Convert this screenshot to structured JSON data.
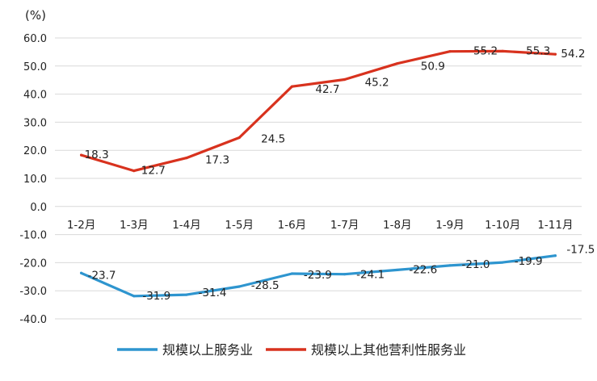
{
  "chart_data": {
    "type": "line",
    "unit_label": "(%)",
    "categories": [
      "1-2月",
      "1-3月",
      "1-4月",
      "1-5月",
      "1-6月",
      "1-7月",
      "1-8月",
      "1-9月",
      "1-10月",
      "1-11月"
    ],
    "ylim": [
      -40.0,
      60.0
    ],
    "yticks": [
      "60.0",
      "50.0",
      "40.0",
      "30.0",
      "20.0",
      "10.0",
      "0.0",
      "-10.0",
      "-20.0",
      "-30.0",
      "-40.0"
    ],
    "grid": true,
    "legend": "bottom",
    "series": [
      {
        "name": "规模以上服务业",
        "color": "#2e95cf",
        "values": [
          -23.7,
          -31.9,
          -31.4,
          -28.5,
          -23.9,
          -24.1,
          -22.6,
          -21.0,
          -19.9,
          -17.5
        ],
        "labels": [
          "-23.7",
          "-31.9",
          "-31.4",
          "-28.5",
          "-23.9",
          "-24.1",
          "-22.6",
          "-21.0",
          "-19.9",
          "-17.5"
        ]
      },
      {
        "name": "规模以上其他营利性服务业",
        "color": "#d8321e",
        "values": [
          18.3,
          12.7,
          17.3,
          24.5,
          42.7,
          45.2,
          50.9,
          55.2,
          55.3,
          54.2
        ],
        "labels": [
          "18.3",
          "12.7",
          "17.3",
          "24.5",
          "42.7",
          "45.2",
          "50.9",
          "55.2",
          "55.3",
          "54.2"
        ]
      }
    ]
  }
}
